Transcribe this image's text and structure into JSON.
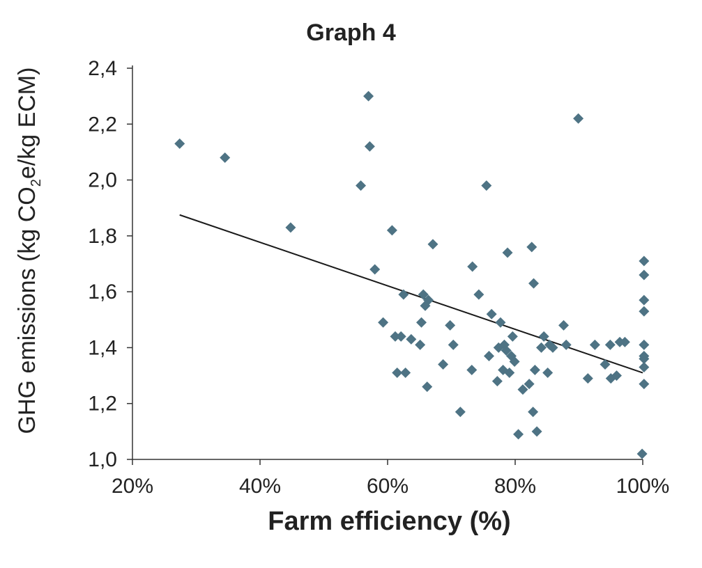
{
  "chart_data": {
    "type": "scatter",
    "title": "Graph 4",
    "xlabel": "Farm efficiency (%)",
    "ylabel_parts": [
      "GHG emissions (kg CO",
      "2",
      "e/kg ECM)"
    ],
    "xlim": [
      20,
      100
    ],
    "ylim": [
      1.0,
      2.4
    ],
    "x_ticks": [
      20,
      40,
      60,
      80,
      100
    ],
    "x_tick_labels": [
      "20%",
      "40%",
      "60%",
      "80%",
      "100%"
    ],
    "y_ticks": [
      1.0,
      1.2,
      1.4,
      1.6,
      1.8,
      2.0,
      2.2,
      2.4
    ],
    "y_tick_labels": [
      "1,0",
      "1,2",
      "1,4",
      "1,6",
      "1,8",
      "2,0",
      "2,2",
      "2,4"
    ],
    "grid": false,
    "marker_color": "#4e7384",
    "trendline_color": "#1a1a1a",
    "points": [
      [
        27.4,
        2.13
      ],
      [
        34.5,
        2.08
      ],
      [
        44.8,
        1.83
      ],
      [
        55.8,
        1.98
      ],
      [
        57.0,
        2.3
      ],
      [
        57.2,
        2.12
      ],
      [
        58.0,
        1.68
      ],
      [
        59.3,
        1.49
      ],
      [
        60.7,
        1.82
      ],
      [
        61.2,
        1.44
      ],
      [
        61.5,
        1.31
      ],
      [
        62.1,
        1.44
      ],
      [
        62.5,
        1.59
      ],
      [
        62.8,
        1.31
      ],
      [
        63.7,
        1.43
      ],
      [
        65.1,
        1.41
      ],
      [
        65.3,
        1.49
      ],
      [
        65.6,
        1.59
      ],
      [
        65.9,
        1.55
      ],
      [
        66.2,
        1.26
      ],
      [
        66.4,
        1.57
      ],
      [
        67.1,
        1.77
      ],
      [
        68.7,
        1.34
      ],
      [
        69.8,
        1.48
      ],
      [
        70.3,
        1.41
      ],
      [
        71.4,
        1.17
      ],
      [
        73.2,
        1.32
      ],
      [
        73.3,
        1.69
      ],
      [
        74.3,
        1.59
      ],
      [
        75.5,
        1.98
      ],
      [
        75.9,
        1.37
      ],
      [
        76.3,
        1.52
      ],
      [
        77.2,
        1.28
      ],
      [
        77.4,
        1.4
      ],
      [
        77.7,
        1.49
      ],
      [
        78.1,
        1.32
      ],
      [
        78.3,
        1.41
      ],
      [
        78.6,
        1.39
      ],
      [
        78.8,
        1.74
      ],
      [
        79.1,
        1.31
      ],
      [
        79.4,
        1.37
      ],
      [
        79.6,
        1.44
      ],
      [
        79.9,
        1.35
      ],
      [
        80.5,
        1.09
      ],
      [
        81.2,
        1.25
      ],
      [
        82.2,
        1.27
      ],
      [
        82.6,
        1.76
      ],
      [
        82.8,
        1.17
      ],
      [
        82.9,
        1.63
      ],
      [
        83.1,
        1.32
      ],
      [
        83.4,
        1.1
      ],
      [
        84.1,
        1.4
      ],
      [
        84.5,
        1.44
      ],
      [
        85.1,
        1.31
      ],
      [
        85.4,
        1.41
      ],
      [
        85.9,
        1.4
      ],
      [
        87.6,
        1.48
      ],
      [
        88.0,
        1.41
      ],
      [
        89.9,
        2.22
      ],
      [
        91.4,
        1.29
      ],
      [
        92.5,
        1.41
      ],
      [
        94.1,
        1.34
      ],
      [
        94.9,
        1.41
      ],
      [
        95.0,
        1.29
      ],
      [
        95.9,
        1.3
      ],
      [
        96.4,
        1.42
      ],
      [
        97.2,
        1.42
      ],
      [
        99.9,
        1.02
      ],
      [
        100.2,
        1.71
      ],
      [
        100.2,
        1.66
      ],
      [
        100.2,
        1.57
      ],
      [
        100.2,
        1.53
      ],
      [
        100.2,
        1.41
      ],
      [
        100.2,
        1.37
      ],
      [
        100.2,
        1.36
      ],
      [
        100.2,
        1.33
      ],
      [
        100.2,
        1.27
      ]
    ],
    "trendline": {
      "x": [
        27.4,
        100.0
      ],
      "y": [
        1.875,
        1.31
      ]
    }
  }
}
